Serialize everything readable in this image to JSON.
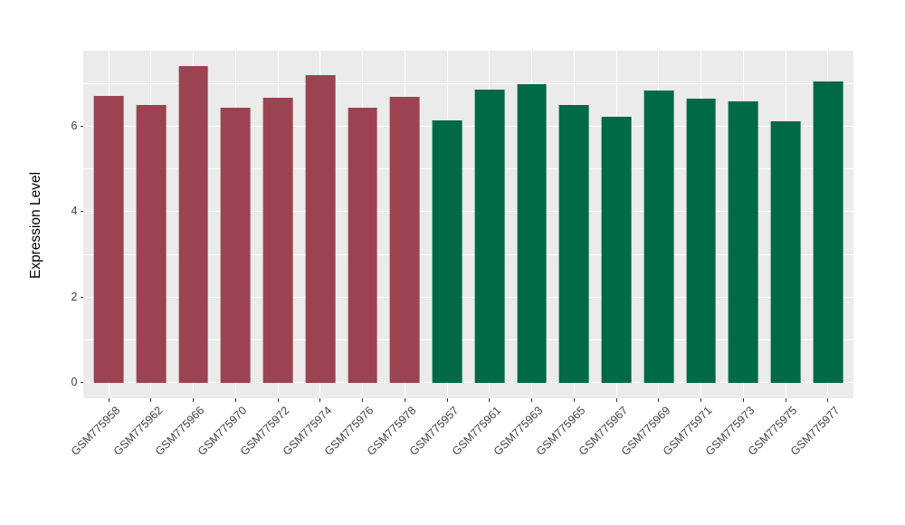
{
  "chart_data": {
    "type": "bar",
    "title": "",
    "xlabel": "",
    "ylabel": "Expression Level",
    "ylim": [
      -0.37,
      7.77
    ],
    "y_major_ticks": [
      0,
      2,
      4,
      6
    ],
    "y_minor_gridlines": [
      1,
      3,
      5,
      7
    ],
    "legend_position": "none",
    "grid": "white major and minor gridlines on gray panel",
    "panel_background": "#EBEBEB",
    "gridline_color": "#FFFFFF",
    "tick_mark_color": "#333333",
    "tick_label_color": "#424242",
    "group_colors": {
      "left_group": "#9B4351",
      "right_group": "#006946"
    },
    "categories": [
      "GSM775958",
      "GSM775962",
      "GSM775966",
      "GSM775970",
      "GSM775972",
      "GSM775974",
      "GSM775976",
      "GSM775978",
      "GSM775957",
      "GSM775961",
      "GSM775963",
      "GSM775965",
      "GSM775967",
      "GSM775969",
      "GSM775971",
      "GSM775973",
      "GSM775975",
      "GSM775977"
    ],
    "values": [
      6.71,
      6.5,
      7.4,
      6.44,
      6.66,
      7.2,
      6.43,
      6.69,
      6.13,
      6.85,
      6.99,
      6.5,
      6.21,
      6.83,
      6.64,
      6.58,
      6.11,
      7.04
    ],
    "bar_colors": [
      "#9B4351",
      "#9B4351",
      "#9B4351",
      "#9B4351",
      "#9B4351",
      "#9B4351",
      "#9B4351",
      "#9B4351",
      "#006946",
      "#006946",
      "#006946",
      "#006946",
      "#006946",
      "#006946",
      "#006946",
      "#006946",
      "#006946",
      "#006946"
    ]
  }
}
